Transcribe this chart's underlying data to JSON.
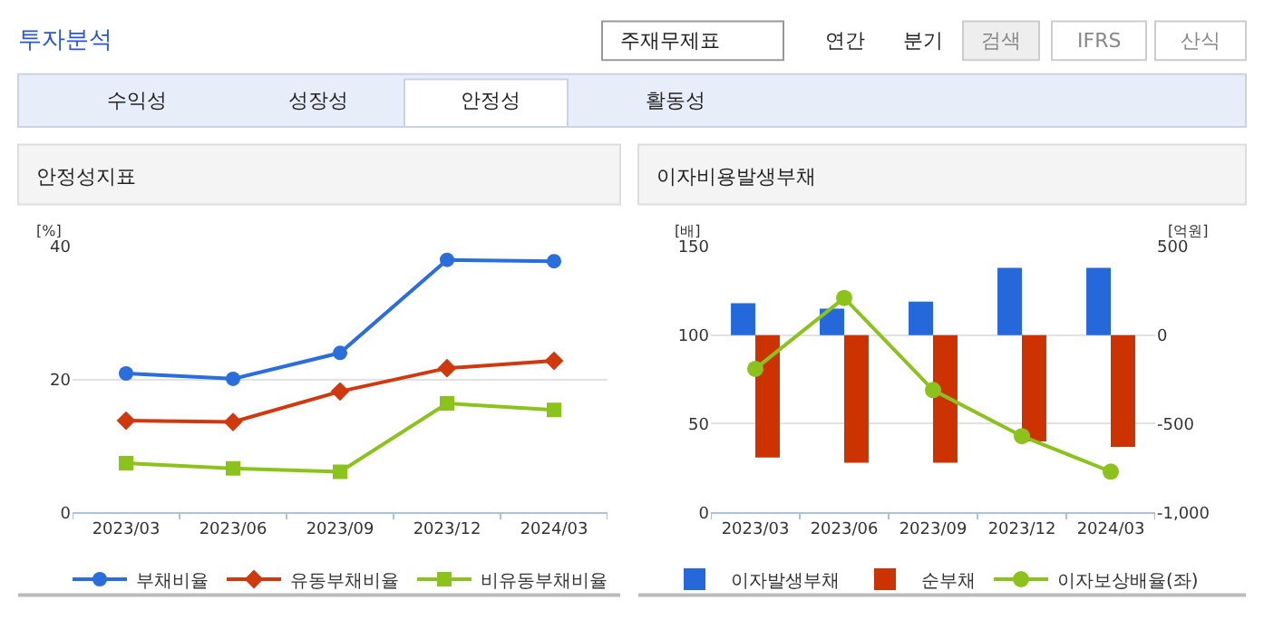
{
  "chart_data": [
    {
      "type": "other",
      "title": "투자분석",
      "annotations": [
        "주재무제표",
        "연간",
        "분기",
        "검색",
        "IFRS",
        "산식",
        "수익성",
        "성장성",
        "안정성",
        "활동성"
      ]
    },
    {
      "type": "line",
      "title": "안정성지표",
      "ylabel": "[%]",
      "categories": [
        "2023/03",
        "2023/06",
        "2023/09",
        "2023/12",
        "2024/03"
      ],
      "ylim": [
        0,
        40
      ],
      "yticks": [
        0,
        20,
        40
      ],
      "grid": "y",
      "legend": "bottom",
      "line_style": "solid",
      "series": [
        {
          "name": "부채비율",
          "color": "#2a6ddd",
          "marker": "circle",
          "values": [
            20.9,
            20.1,
            24.0,
            38.0,
            37.8
          ]
        },
        {
          "name": "유동부채비율",
          "color": "#d0380e",
          "marker": "diamond",
          "values": [
            13.8,
            13.6,
            18.2,
            21.7,
            22.8
          ]
        },
        {
          "name": "비유동부채비율",
          "color": "#8cc21c",
          "marker": "square",
          "values": [
            7.4,
            6.6,
            6.1,
            16.4,
            15.4
          ]
        }
      ]
    },
    {
      "type": "bar",
      "title": "이자비용발생부채",
      "ylabel": "[배]",
      "y2label": "[억원]",
      "categories": [
        "2023/03",
        "2023/06",
        "2023/09",
        "2023/12",
        "2024/03"
      ],
      "ylim": [
        0,
        150
      ],
      "yticks": [
        0,
        50,
        100,
        150
      ],
      "y2lim": [
        -1000,
        500
      ],
      "y2ticks": [
        {
          "value": -1000,
          "label": "-1,000"
        },
        -500,
        0,
        500
      ],
      "grid": "y",
      "legend": "bottom",
      "series": [
        {
          "name": "이자발생부채",
          "color": "#2468dc",
          "axis": "y2",
          "values": [
            180,
            150,
            190,
            380,
            380
          ]
        },
        {
          "name": "순부채",
          "color": "#cc3300",
          "axis": "y2",
          "values": [
            -690,
            -720,
            -720,
            -600,
            -630
          ]
        },
        {
          "name": "이자보상배율(좌)",
          "type": "line",
          "color": "#8cc21c",
          "marker": "circle",
          "values": [
            81,
            121,
            69,
            43,
            23
          ]
        }
      ]
    }
  ]
}
